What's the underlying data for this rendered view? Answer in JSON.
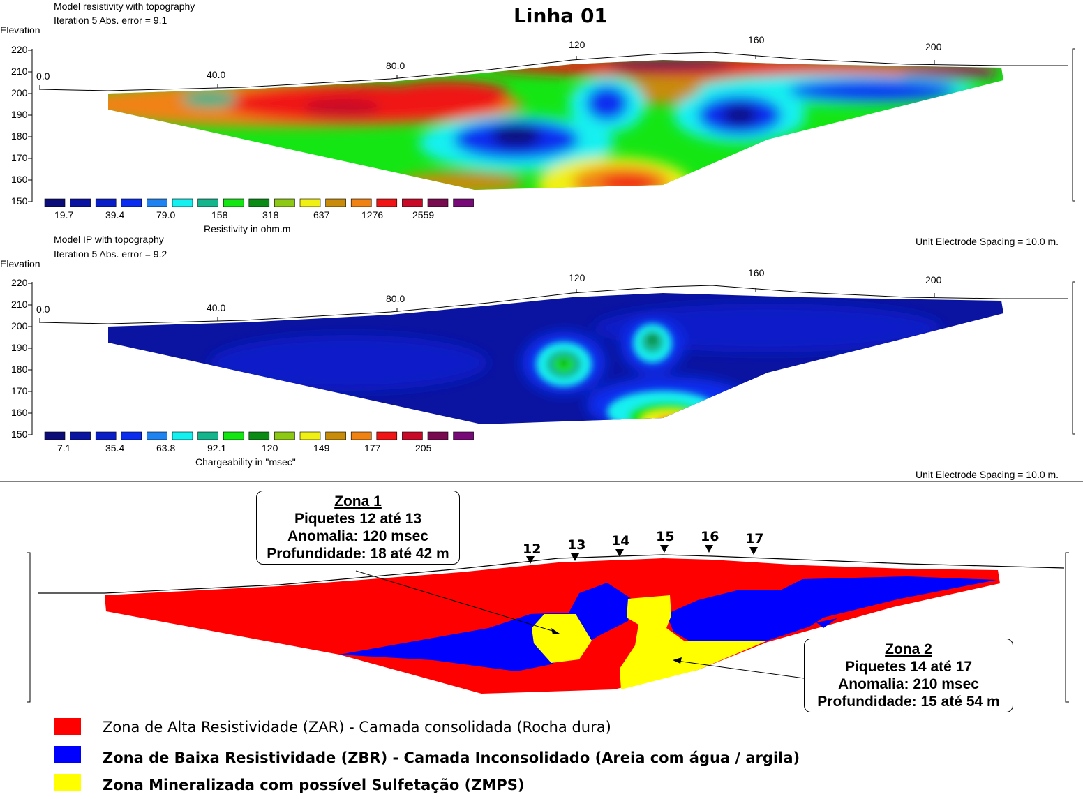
{
  "title": "Linha 01",
  "panel1": {
    "header1": "Model resistivity with topography",
    "header2": "Iteration 5 Abs. error = 9.1",
    "elev_label": "Elevation",
    "elev_ticks": [
      "220",
      "210",
      "200",
      "190",
      "180",
      "170",
      "160",
      "150"
    ],
    "x_ticks": [
      "0.0",
      "40.0",
      "80.0",
      "120",
      "160",
      "200"
    ],
    "scale_values": [
      "19.7",
      "39.4",
      "79.0",
      "158",
      "318",
      "637",
      "1276",
      "2559"
    ],
    "scale_title": "Resistivity in ohm.m",
    "spacing": "Unit Electrode Spacing = 10.0 m."
  },
  "panel2": {
    "header1": "Model IP with topography",
    "header2": "Iteration 5 Abs. error = 9.2",
    "elev_label": "Elevation",
    "elev_ticks": [
      "220",
      "210",
      "200",
      "190",
      "180",
      "170",
      "160",
      "150"
    ],
    "x_ticks": [
      "0.0",
      "40.0",
      "80.0",
      "120",
      "160",
      "200"
    ],
    "scale_values": [
      "7.1",
      "35.4",
      "63.8",
      "92.1",
      "120",
      "149",
      "177",
      "205"
    ],
    "scale_title": "Chargeability in \"msec\"",
    "spacing": "Unit Electrode Spacing = 10.0 m."
  },
  "scale_colors": [
    "#0c0c78",
    "#0a14a0",
    "#0a1ec8",
    "#0a2df0",
    "#1e82f0",
    "#14f0f0",
    "#14b48c",
    "#14e614",
    "#0a8c14",
    "#8cc814",
    "#f0f014",
    "#c88c0a",
    "#f08214",
    "#f01414",
    "#c80a28",
    "#780a50",
    "#780a78"
  ],
  "interpretation": {
    "piquetes": [
      "12",
      "13",
      "14",
      "15",
      "16",
      "17"
    ],
    "zona1": {
      "title": "Zona 1",
      "line1": "Piquetes 12 até 13",
      "line2": "Anomalia: 120 msec",
      "line3": "Profundidade: 18 até 42 m"
    },
    "zona2": {
      "title": "Zona 2",
      "line1": "Piquetes 14 até 17",
      "line2": "Anomalia: 210 msec",
      "line3": "Profundidade: 15 até 54 m"
    }
  },
  "legend": [
    {
      "color": "#ff0000",
      "text": "Zona de Alta Resistividade (ZAR) - Camada consolidada (Rocha dura)"
    },
    {
      "color": "#0000ff",
      "text": "Zona de Baixa Resistividade (ZBR) - Camada Inconsolidado (Areia com água / argila)"
    },
    {
      "color": "#ffff00",
      "text": "Zona Mineralizada com possível Sulfetação (ZMPS)"
    }
  ]
}
